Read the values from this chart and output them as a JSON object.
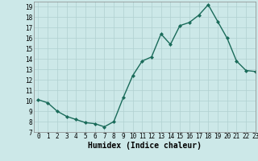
{
  "x": [
    0,
    1,
    2,
    3,
    4,
    5,
    6,
    7,
    8,
    9,
    10,
    11,
    12,
    13,
    14,
    15,
    16,
    17,
    18,
    19,
    20,
    21,
    22,
    23
  ],
  "y": [
    10.1,
    9.8,
    9.0,
    8.5,
    8.2,
    7.9,
    7.8,
    7.5,
    8.0,
    10.3,
    12.4,
    13.8,
    14.2,
    16.4,
    15.4,
    17.2,
    17.5,
    18.2,
    19.2,
    17.6,
    16.0,
    13.8,
    12.9,
    12.8
  ],
  "xlabel": "Humidex (Indice chaleur)",
  "ylim": [
    7,
    19.5
  ],
  "xlim": [
    -0.5,
    23
  ],
  "yticks": [
    7,
    8,
    9,
    10,
    11,
    12,
    13,
    14,
    15,
    16,
    17,
    18,
    19
  ],
  "xticks": [
    0,
    1,
    2,
    3,
    4,
    5,
    6,
    7,
    8,
    9,
    10,
    11,
    12,
    13,
    14,
    15,
    16,
    17,
    18,
    19,
    20,
    21,
    22,
    23
  ],
  "line_color": "#1a6b5a",
  "marker_color": "#1a6b5a",
  "bg_color": "#cce8e8",
  "grid_color": "#b0d0d0",
  "xlabel_fontsize": 7,
  "tick_fontsize": 5.5,
  "marker": "D",
  "marker_size": 2.0,
  "linewidth": 1.0
}
